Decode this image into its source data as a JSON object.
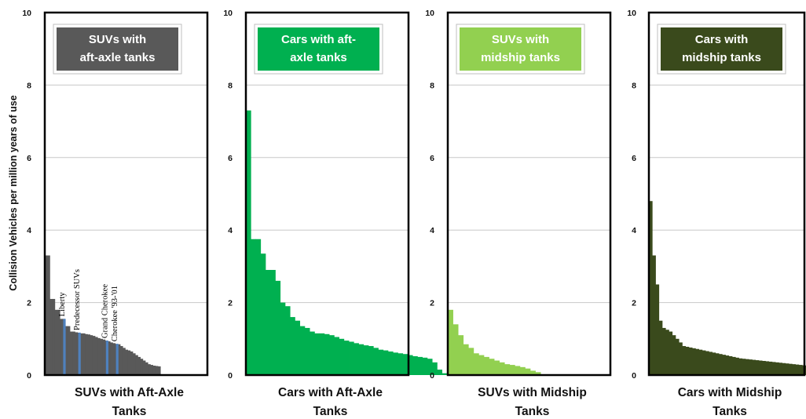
{
  "chart_data": {
    "ylabel": "Collision Vehicles per million years of use",
    "panels": [
      {
        "id": "suv-aft",
        "type": "area",
        "ylim": [
          0,
          10
        ],
        "yticks": [
          "0",
          "2",
          "4",
          "6",
          "8",
          "10"
        ],
        "legend": [
          "SUVs with",
          "aft-axle tanks"
        ],
        "legend_color": "#595959",
        "fill_color": "#595959",
        "xlabel": [
          "SUVs with Aft-Axle",
          "Tanks"
        ],
        "values": [
          3.3,
          3.3,
          2.1,
          2.1,
          1.8,
          1.8,
          1.55,
          1.55,
          1.35,
          1.35,
          1.2,
          1.2,
          1.18,
          1.17,
          1.15,
          1.15,
          1.13,
          1.12,
          1.1,
          1.08,
          1.05,
          1.02,
          1.0,
          0.98,
          0.95,
          0.93,
          0.9,
          0.88,
          0.86,
          0.85,
          0.8,
          0.75,
          0.7,
          0.68,
          0.65,
          0.6,
          0.55,
          0.5,
          0.45,
          0.4,
          0.35,
          0.3,
          0.28,
          0.26,
          0.25,
          0.24
        ],
        "highlights": [
          {
            "index": 7,
            "label": "Liberty"
          },
          {
            "index": 13,
            "label": "Predecessor SUVs"
          },
          {
            "index": 24,
            "label": "Grand Cherokee"
          },
          {
            "index": 28,
            "label": "Cherokee '93-'01"
          }
        ]
      },
      {
        "id": "car-aft",
        "type": "area",
        "ylim": [
          0,
          10
        ],
        "yticks": [
          "0",
          "2",
          "4",
          "6",
          "8",
          "10"
        ],
        "legend": [
          "Cars with aft-",
          "axle tanks"
        ],
        "legend_color": "#00b050",
        "fill_color": "#00b050",
        "xlabel": [
          "Cars with Aft-Axle",
          "Tanks"
        ],
        "values": [
          7.3,
          3.75,
          3.75,
          3.35,
          2.9,
          2.9,
          2.6,
          2.0,
          1.9,
          1.6,
          1.5,
          1.35,
          1.3,
          1.2,
          1.15,
          1.15,
          1.13,
          1.1,
          1.05,
          1.0,
          0.95,
          0.92,
          0.88,
          0.85,
          0.82,
          0.8,
          0.75,
          0.7,
          0.68,
          0.65,
          0.62,
          0.6,
          0.58,
          0.55,
          0.52,
          0.5,
          0.48,
          0.45,
          0.35,
          0.15,
          0.05
        ]
      },
      {
        "id": "suv-mid",
        "type": "area",
        "ylim": [
          0,
          10
        ],
        "yticks": [
          "0",
          "2",
          "4",
          "6",
          "8",
          "10"
        ],
        "legend": [
          "SUVs with",
          "midship tanks"
        ],
        "legend_color": "#92d050",
        "fill_color": "#92d050",
        "xlabel": [
          "SUVs with Midship",
          "Tanks"
        ],
        "values": [
          1.8,
          1.4,
          1.1,
          0.85,
          0.75,
          0.6,
          0.55,
          0.5,
          0.45,
          0.4,
          0.35,
          0.3,
          0.28,
          0.25,
          0.22,
          0.18,
          0.12,
          0.08
        ]
      },
      {
        "id": "car-mid",
        "type": "area",
        "ylim": [
          0,
          10
        ],
        "yticks": [
          "0",
          "2",
          "4",
          "6",
          "8",
          "10"
        ],
        "legend": [
          "Cars with",
          "midship tanks"
        ],
        "legend_color": "#3a4a1c",
        "fill_color": "#3a4a1c",
        "xlabel": [
          "Cars with Midship",
          "Tanks"
        ],
        "values": [
          4.8,
          3.3,
          2.5,
          1.5,
          1.3,
          1.25,
          1.2,
          1.1,
          1.0,
          0.9,
          0.8,
          0.78,
          0.76,
          0.74,
          0.72,
          0.7,
          0.68,
          0.66,
          0.64,
          0.62,
          0.6,
          0.58,
          0.56,
          0.54,
          0.52,
          0.5,
          0.48,
          0.46,
          0.45,
          0.44,
          0.43,
          0.42,
          0.41,
          0.4,
          0.39,
          0.38,
          0.37,
          0.36,
          0.35,
          0.34,
          0.33,
          0.32,
          0.31,
          0.3,
          0.29,
          0.28,
          0.27,
          0.26,
          0.25,
          0.24,
          0.23,
          0.22,
          0.21,
          0.2,
          0.19,
          0.18,
          0.17,
          0.16,
          0.15,
          0.12,
          0.08
        ]
      }
    ]
  }
}
